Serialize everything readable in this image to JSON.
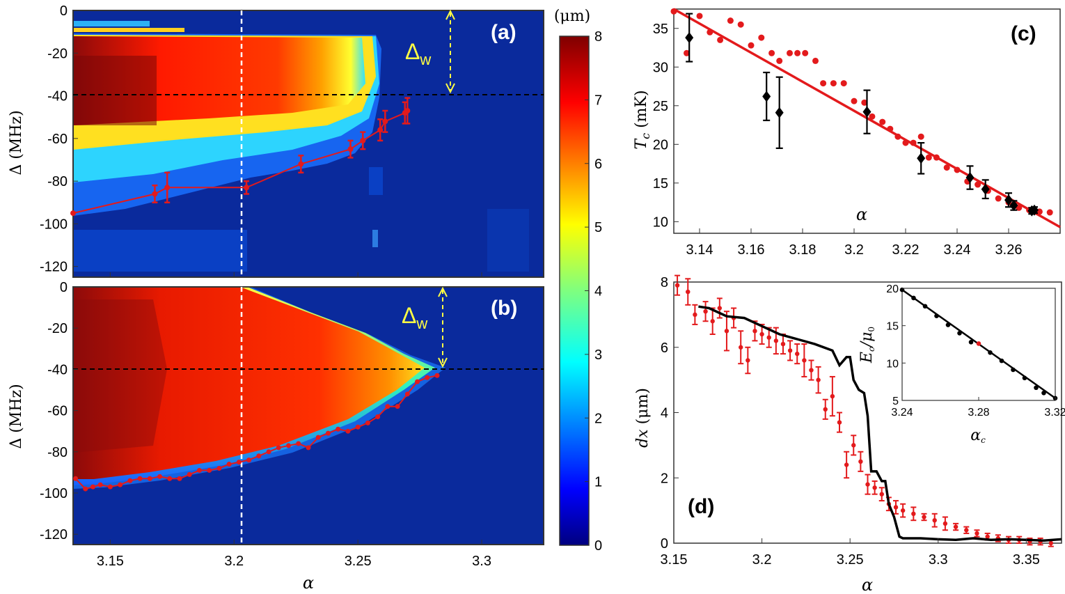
{
  "colors": {
    "hot": "#ff1a1a",
    "dark_red": "#9a0a0a",
    "blue_bg": "#0a2a9c",
    "dash_white": "#ffffff",
    "dash_black": "#000000",
    "yellow": "#ffff44",
    "red_mark": "#e31a1c",
    "black": "#000000"
  },
  "colorbar": {
    "unit_label": "(μm)",
    "ticks": [
      "0",
      "1",
      "2",
      "3",
      "4",
      "5",
      "6",
      "7",
      "8"
    ],
    "range": [
      0,
      8
    ]
  },
  "panel_a": {
    "label": "(a)",
    "delta_w": "Δ",
    "delta_w_sub": "w",
    "ylabel": "Δ (MHz)"
  },
  "panel_b": {
    "label": "(b)",
    "delta_w": "Δ",
    "delta_w_sub": "w",
    "ylabel": "Δ (MHz)",
    "xlabel": "α"
  },
  "panel_c": {
    "label": "(c)",
    "ylabel": "T",
    "ylabel_sub": "c",
    "ylabel_unit": " (mK)",
    "xlabel": "α"
  },
  "panel_d": {
    "label": "(d)",
    "ylabel": "dx",
    "ylabel_unit": " (μm)",
    "xlabel": "α",
    "inset_ylabel": "E",
    "inset_ylabel_sub": "c",
    "inset_ylabel_den": "/μ",
    "inset_ylabel_den_sub": "0",
    "inset_xlabel": "α",
    "inset_xlabel_sub": "c"
  },
  "chart_data": [
    {
      "type": "heatmap",
      "panel": "a",
      "xlabel": "α",
      "ylabel": "Δ (MHz)",
      "xlim": [
        3.135,
        3.325
      ],
      "ylim": [
        -125,
        0
      ],
      "x_ticks": [
        "3.15",
        "3.2",
        "3.25",
        "3.3"
      ],
      "y_ticks": [
        "0",
        "-20",
        "-40",
        "-60",
        "-80",
        "-100",
        "-120"
      ],
      "hline_delta": -40,
      "vline_alpha": 3.205,
      "boundary": {
        "alpha": [
          3.135,
          3.168,
          3.173,
          3.205,
          3.227,
          3.247,
          3.252,
          3.259,
          3.261,
          3.269,
          3.27
        ],
        "delta": [
          -95,
          -86,
          -83,
          -83,
          -72,
          -65,
          -61,
          -56,
          -52,
          -48,
          -47
        ],
        "err": [
          0,
          4,
          7,
          3,
          4,
          4,
          4,
          5,
          5,
          5,
          6
        ]
      }
    },
    {
      "type": "heatmap",
      "panel": "b",
      "xlabel": "α",
      "ylabel": "Δ (MHz)",
      "xlim": [
        3.135,
        3.325
      ],
      "ylim": [
        -125,
        0
      ],
      "x_ticks": [
        "3.15",
        "3.2",
        "3.25",
        "3.3"
      ],
      "y_ticks": [
        "0",
        "-20",
        "-40",
        "-60",
        "-80",
        "-100",
        "-120"
      ],
      "hline_delta": -40,
      "vline_alpha": 3.205,
      "boundary": {
        "alpha": [
          3.136,
          3.14,
          3.143,
          3.146,
          3.15,
          3.154,
          3.158,
          3.162,
          3.166,
          3.17,
          3.174,
          3.178,
          3.182,
          3.186,
          3.19,
          3.194,
          3.198,
          3.202,
          3.206,
          3.21,
          3.214,
          3.218,
          3.222,
          3.226,
          3.23,
          3.234,
          3.238,
          3.242,
          3.246,
          3.25,
          3.254,
          3.258,
          3.262,
          3.266,
          3.27,
          3.274,
          3.278,
          3.282
        ],
        "delta": [
          -93,
          -98,
          -97,
          -96,
          -97,
          -96,
          -94,
          -93,
          -93,
          -92,
          -93,
          -93,
          -91,
          -89,
          -89,
          -88,
          -86,
          -85,
          -84,
          -82,
          -80,
          -78,
          -77,
          -76,
          -78,
          -73,
          -71,
          -69,
          -70,
          -68,
          -66,
          -63,
          -58,
          -58,
          -52,
          -46,
          -44,
          -43
        ]
      }
    },
    {
      "type": "scatter",
      "panel": "c",
      "xlabel": "α",
      "ylabel": "T_c (mK)",
      "xlim": [
        3.13,
        3.28
      ],
      "ylim": [
        8.5,
        37.5
      ],
      "x_ticks": [
        "3.14",
        "3.16",
        "3.18",
        "3.2",
        "3.22",
        "3.24",
        "3.26"
      ],
      "y_ticks": [
        "10",
        "15",
        "20",
        "25",
        "30",
        "35"
      ],
      "fit_line": {
        "alpha": [
          3.13,
          3.28
        ],
        "T": [
          37.5,
          9.3
        ]
      },
      "red_points": {
        "alpha": [
          3.13,
          3.135,
          3.14,
          3.144,
          3.148,
          3.152,
          3.156,
          3.16,
          3.164,
          3.168,
          3.171,
          3.175,
          3.178,
          3.181,
          3.185,
          3.188,
          3.192,
          3.196,
          3.2,
          3.204,
          3.207,
          3.211,
          3.214,
          3.217,
          3.22,
          3.223,
          3.226,
          3.229,
          3.232,
          3.236,
          3.24,
          3.244,
          3.248,
          3.252,
          3.256,
          3.26,
          3.264,
          3.268,
          3.272,
          3.276
        ],
        "T": [
          37.2,
          31.8,
          36.6,
          34.5,
          33.5,
          36.0,
          35.5,
          32.8,
          33.8,
          31.8,
          30.8,
          31.8,
          31.8,
          31.8,
          30.8,
          27.9,
          27.9,
          27.9,
          25.6,
          25.4,
          23.6,
          22.9,
          22.0,
          21.0,
          20.2,
          20.2,
          21.0,
          18.3,
          18.3,
          17.0,
          16.7,
          15.2,
          14.8,
          14.0,
          13.0,
          12.5,
          11.8,
          11.5,
          11.3,
          11.2
        ]
      },
      "black_points": {
        "alpha": [
          3.136,
          3.166,
          3.171,
          3.205,
          3.226,
          3.245,
          3.251,
          3.26,
          3.262,
          3.269,
          3.27
        ],
        "T": [
          33.8,
          26.2,
          24.1,
          24.2,
          18.2,
          15.7,
          14.2,
          12.8,
          12.1,
          11.4,
          11.5
        ],
        "err": [
          3.1,
          3.1,
          4.6,
          2.8,
          2.0,
          1.5,
          1.2,
          0.9,
          0.6,
          0.4,
          0.4
        ]
      }
    },
    {
      "type": "line",
      "panel": "d",
      "xlabel": "α",
      "ylabel": "dx (μm)",
      "xlim": [
        3.15,
        3.37
      ],
      "ylim": [
        0,
        8
      ],
      "x_ticks": [
        "3.15",
        "3.2",
        "3.25",
        "3.3",
        "3.35"
      ],
      "y_ticks": [
        "0",
        "2",
        "4",
        "6",
        "8"
      ],
      "simulation": {
        "alpha": [
          3.164,
          3.17,
          3.18,
          3.19,
          3.2,
          3.21,
          3.22,
          3.23,
          3.24,
          3.244,
          3.248,
          3.25,
          3.252,
          3.255,
          3.258,
          3.26,
          3.262,
          3.265,
          3.268,
          3.27,
          3.272,
          3.275,
          3.278,
          3.28,
          3.29,
          3.3,
          3.31,
          3.32,
          3.33,
          3.34,
          3.35,
          3.36,
          3.37
        ],
        "dx": [
          7.25,
          7.2,
          6.95,
          6.9,
          6.65,
          6.4,
          6.25,
          6.1,
          5.9,
          5.45,
          5.7,
          5.7,
          5.0,
          4.7,
          4.6,
          3.9,
          2.2,
          2.2,
          1.9,
          1.9,
          1.2,
          0.8,
          0.2,
          0.15,
          0.15,
          0.12,
          0.1,
          0.15,
          0.1,
          0.12,
          0.1,
          0.08,
          0.12
        ]
      },
      "experiment": {
        "alpha": [
          3.152,
          3.158,
          3.162,
          3.168,
          3.172,
          3.176,
          3.18,
          3.184,
          3.188,
          3.192,
          3.196,
          3.2,
          3.204,
          3.208,
          3.212,
          3.216,
          3.22,
          3.224,
          3.228,
          3.232,
          3.236,
          3.24,
          3.244,
          3.248,
          3.252,
          3.256,
          3.26,
          3.264,
          3.268,
          3.272,
          3.276,
          3.28,
          3.286,
          3.292,
          3.298,
          3.304,
          3.31,
          3.316,
          3.322,
          3.328,
          3.334,
          3.34,
          3.346,
          3.352,
          3.358,
          3.364
        ],
        "dx": [
          7.9,
          7.7,
          7.0,
          7.1,
          6.8,
          7.2,
          6.5,
          6.9,
          6.0,
          5.6,
          6.5,
          6.4,
          6.3,
          6.2,
          6.1,
          5.9,
          5.8,
          5.6,
          5.3,
          5.0,
          4.1,
          4.5,
          3.7,
          2.4,
          3.0,
          2.5,
          1.8,
          1.7,
          1.5,
          1.2,
          1.1,
          1.0,
          0.9,
          0.8,
          0.7,
          0.6,
          0.5,
          0.4,
          0.3,
          0.2,
          0.15,
          0.1,
          0.1,
          0.05,
          0.05,
          0.0
        ],
        "err": [
          0.3,
          0.4,
          0.3,
          0.3,
          0.4,
          0.3,
          0.6,
          0.3,
          0.5,
          0.4,
          0.3,
          0.3,
          0.3,
          0.4,
          0.3,
          0.3,
          0.3,
          0.5,
          0.3,
          0.4,
          0.3,
          0.6,
          0.3,
          0.4,
          0.3,
          0.3,
          0.3,
          0.2,
          0.2,
          0.2,
          0.2,
          0.2,
          0.2,
          0.1,
          0.2,
          0.2,
          0.1,
          0.1,
          0.1,
          0.1,
          0.1,
          0.1,
          0.1,
          0.1,
          0.1,
          0.1
        ]
      },
      "inset": {
        "xlabel": "α_c",
        "ylabel": "E_c/μ_0",
        "xlim": [
          3.24,
          3.32
        ],
        "ylim": [
          5,
          20
        ],
        "x_ticks": [
          "3.24",
          "3.28",
          "3.32"
        ],
        "y_ticks": [
          "5",
          "10",
          "15",
          "20"
        ],
        "alpha": [
          3.24,
          3.246,
          3.252,
          3.258,
          3.264,
          3.27,
          3.276,
          3.28,
          3.286,
          3.292,
          3.298,
          3.304,
          3.31,
          3.314,
          3.32
        ],
        "E": [
          19.8,
          18.7,
          17.6,
          16.3,
          15.1,
          14.0,
          12.8,
          12.6,
          11.4,
          10.3,
          9.1,
          8.0,
          6.7,
          6.0,
          5.3
        ]
      }
    }
  ]
}
